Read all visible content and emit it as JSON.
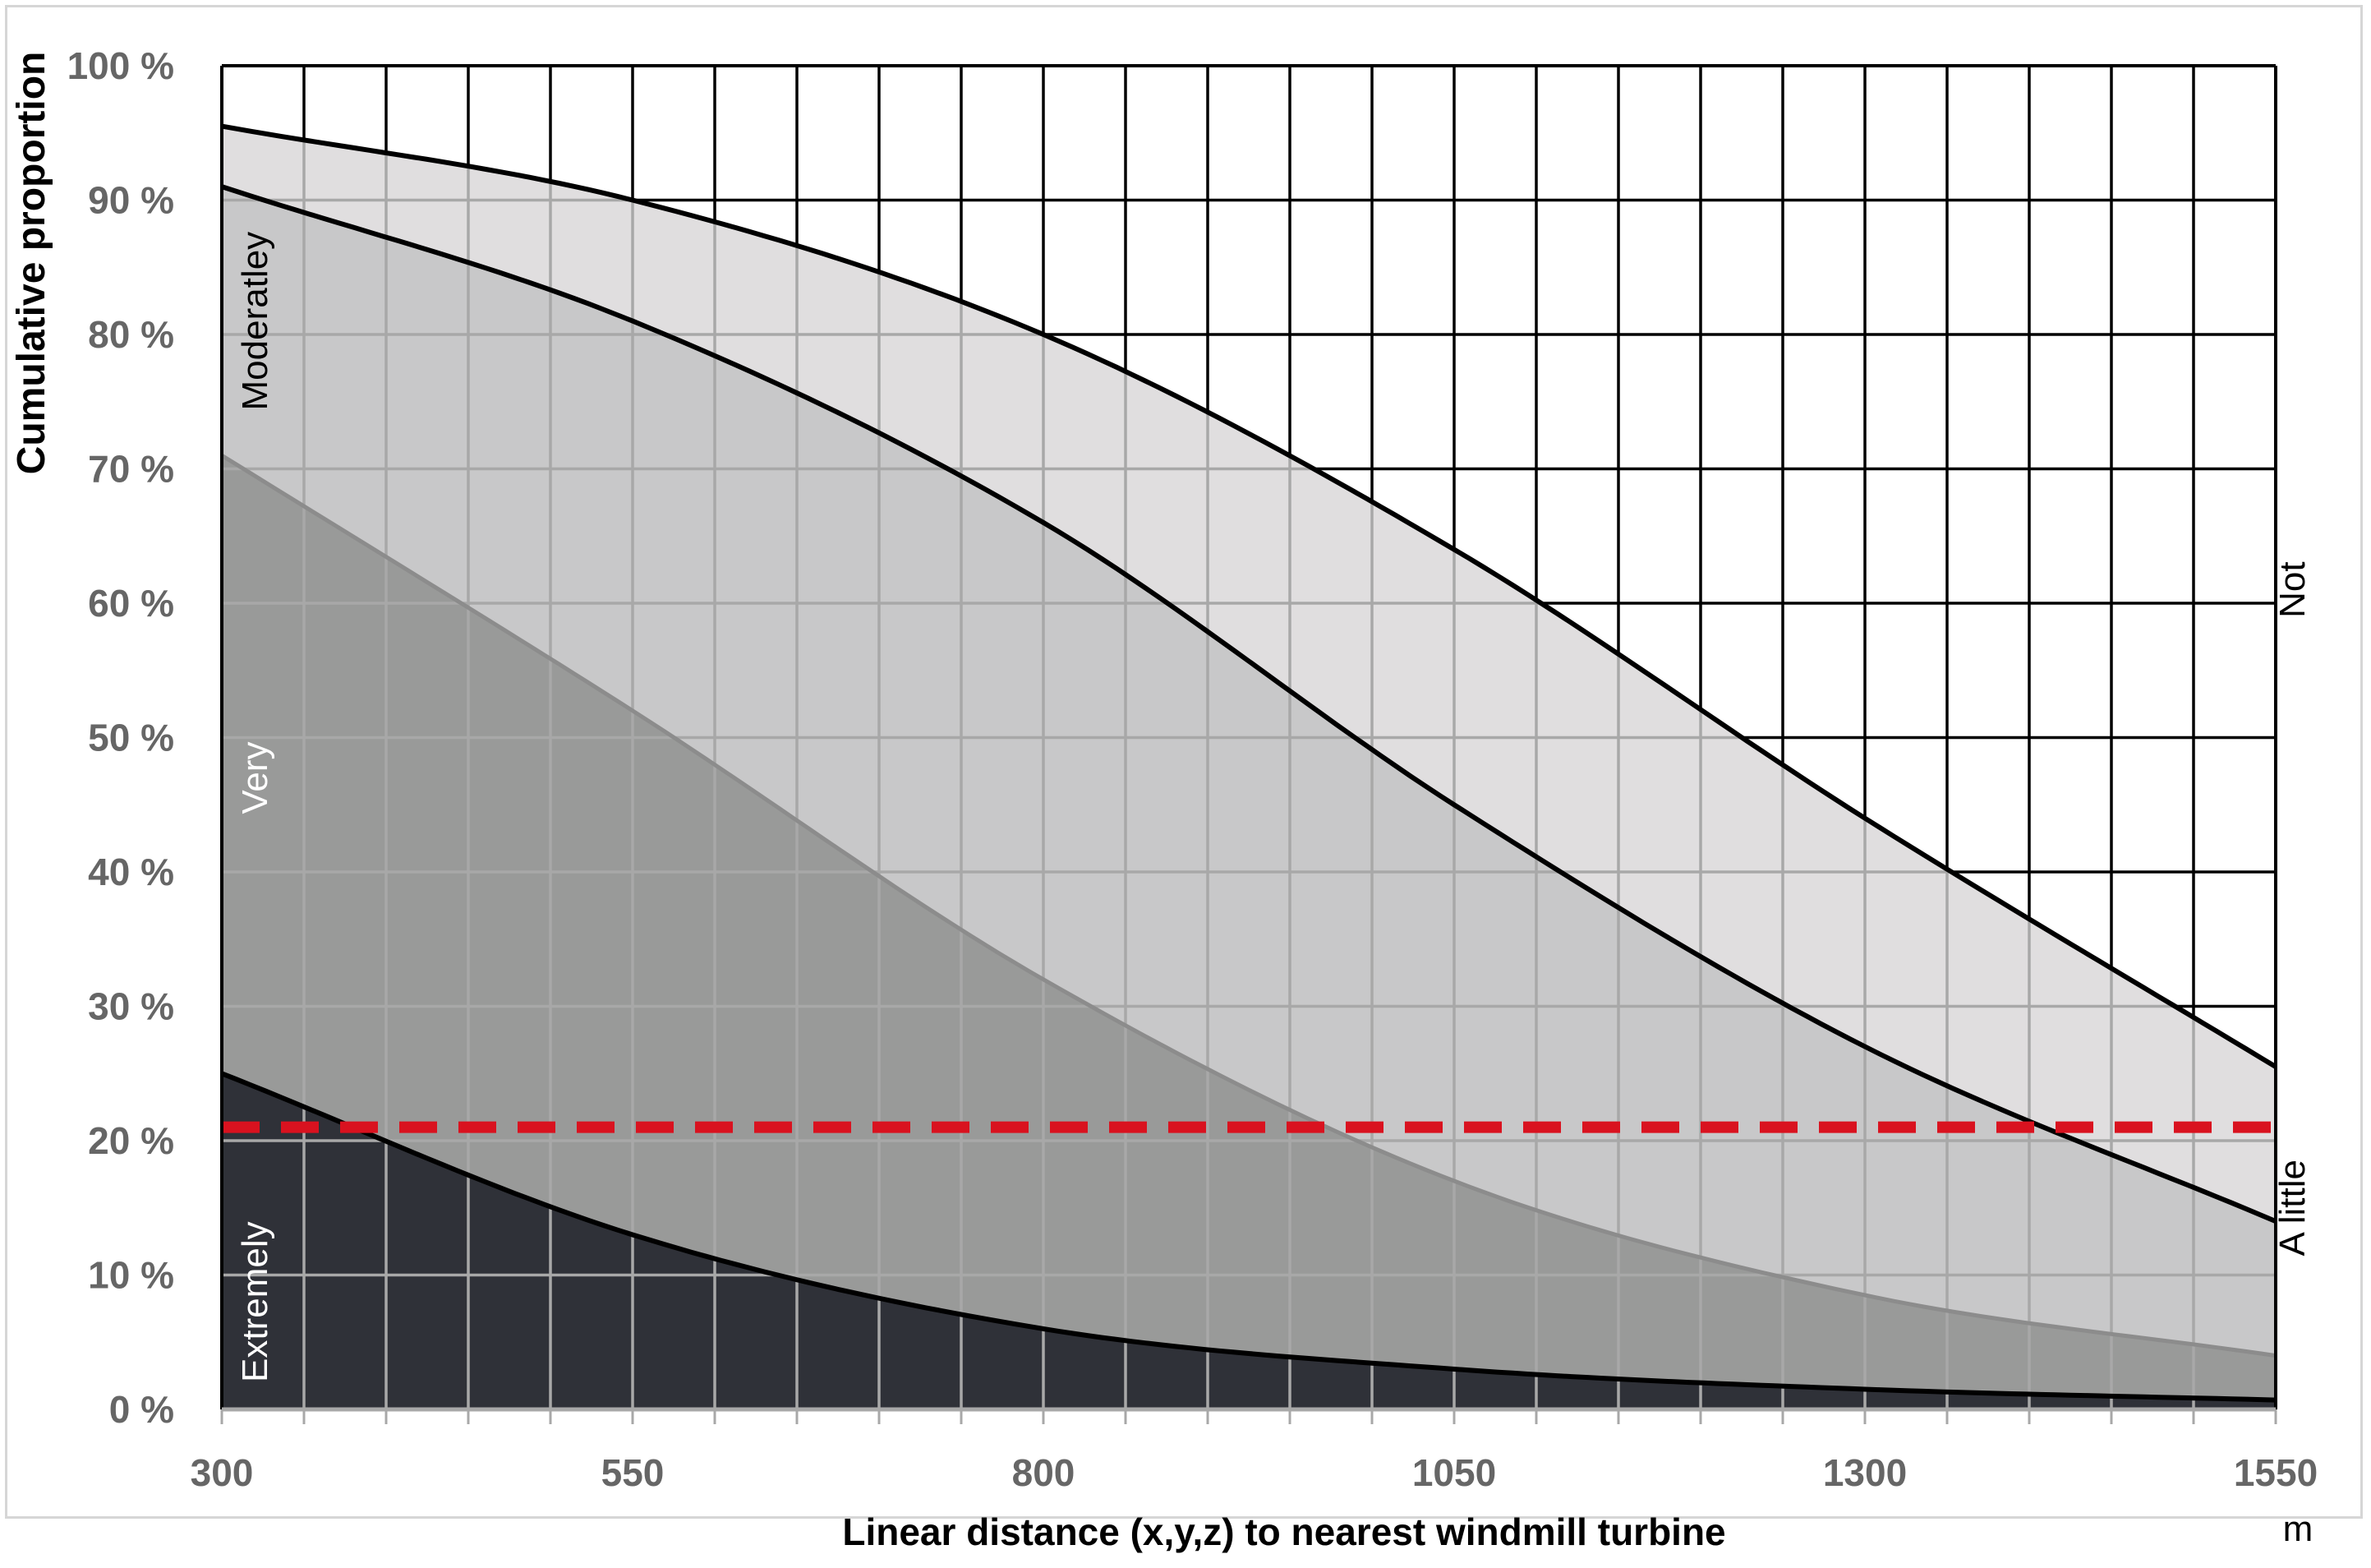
{
  "chart_data": {
    "type": "area",
    "xlabel": "Linear distance (x,y,z) to nearest windmill turbine",
    "x_unit": "m",
    "ylabel": "Cumulative proportion",
    "xlim": [
      300,
      1550
    ],
    "ylim": [
      0,
      100
    ],
    "x_ticks": [
      "300",
      "550",
      "800",
      "1050",
      "1300",
      "1550"
    ],
    "y_ticks": [
      "0 %",
      "10 %",
      "20 %",
      "30 %",
      "40 %",
      "50 %",
      "60 %",
      "70 %",
      "80 %",
      "90 %",
      "100 %"
    ],
    "grid": true,
    "stacking": "cumulative",
    "x": [
      300,
      550,
      800,
      1050,
      1300,
      1550
    ],
    "series": [
      {
        "name": "Extremely",
        "values": [
          25,
          13,
          6,
          3,
          1.5,
          0.7
        ],
        "fill": "#2f3138",
        "stroke": "#000000"
      },
      {
        "name": "Very",
        "values": [
          71,
          52,
          32,
          17,
          8.5,
          4
        ],
        "fill": "#999a99",
        "stroke": "#8c8c8c"
      },
      {
        "name": "Moderatley",
        "values": [
          91,
          81,
          66,
          45,
          27,
          14
        ],
        "fill": "#c8c8c9",
        "stroke": "#000000"
      },
      {
        "name": "A little",
        "values": [
          95.5,
          90,
          80,
          64,
          44,
          25.5
        ],
        "fill": "#e0dedf",
        "stroke": "#000000"
      },
      {
        "name": "Not",
        "values": [
          100,
          100,
          100,
          100,
          100,
          100
        ],
        "fill": "#ffffff",
        "stroke": "#000000"
      }
    ],
    "reference_line": {
      "y": 21,
      "color": "#d9121f",
      "style": "dashed"
    }
  }
}
